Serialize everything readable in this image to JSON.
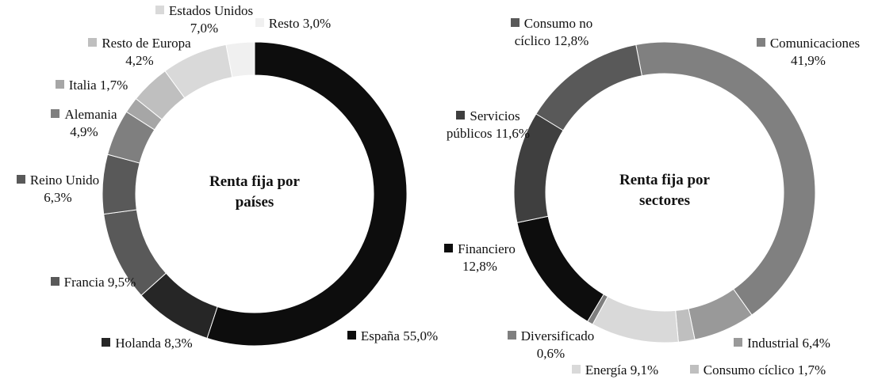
{
  "chart_data": [
    {
      "type": "pie",
      "title": "Renta fija por países",
      "categories": [
        "España",
        "Holanda",
        "Francia",
        "Reino Unido",
        "Alemania",
        "Italia",
        "Resto de Europa",
        "Estados Unidos",
        "Resto"
      ],
      "values": [
        55.0,
        8.3,
        9.5,
        6.3,
        4.9,
        1.7,
        4.2,
        7.0,
        3.0
      ],
      "value_labels": [
        "55,0%",
        "8,3%",
        "9,5%",
        "6,3%",
        "4,9%",
        "1,7%",
        "4,2%",
        "7,0%",
        "3,0%"
      ],
      "colors": [
        "#0d0d0d",
        "#262626",
        "#595959",
        "#595959",
        "#7f7f7f",
        "#a6a6a6",
        "#bfbfbf",
        "#d9d9d9",
        "#f0f0f0"
      ]
    },
    {
      "type": "pie",
      "title": "Renta fija por sectores",
      "categories": [
        "Comunicaciones",
        "Industrial",
        "Consumo cíclico",
        "Energía",
        "Diversificado",
        "Financiero",
        "Servicios públicos",
        "Consumo no cíclico"
      ],
      "values": [
        41.9,
        6.4,
        1.7,
        9.1,
        0.6,
        12.8,
        11.6,
        12.8
      ],
      "value_labels": [
        "41,9%",
        "6,4%",
        "1,7%",
        "9,1%",
        "0,6%",
        "12,8%",
        "11,6%",
        "12,8%"
      ],
      "colors": [
        "#808080",
        "#999999",
        "#bfbfbf",
        "#d9d9d9",
        "#7f7f7f",
        "#0d0d0d",
        "#3f3f3f",
        "#595959"
      ]
    }
  ]
}
